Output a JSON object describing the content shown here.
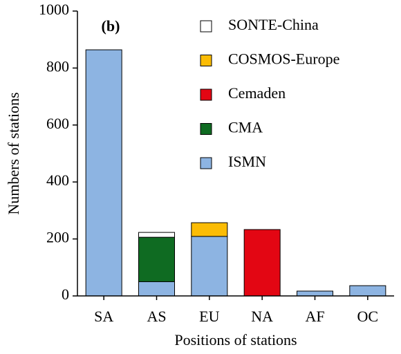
{
  "chart_data": {
    "type": "stacked_bar",
    "panel_label": "(b)",
    "x_label": "Positions of stations",
    "y_label": "Numbers of stations",
    "categories": [
      "SA",
      "AS",
      "EU",
      "NA",
      "AF",
      "OC"
    ],
    "series": [
      {
        "name": "ISMN",
        "color": "#8db4e2",
        "values": [
          864,
          50,
          209,
          0,
          17,
          36
        ]
      },
      {
        "name": "CMA",
        "color": "#0f6b22",
        "values": [
          0,
          156,
          0,
          0,
          0,
          0
        ]
      },
      {
        "name": "Cemaden",
        "color": "#e30613",
        "values": [
          0,
          0,
          0,
          233,
          0,
          0
        ]
      },
      {
        "name": "COSMOS-Europe",
        "color": "#fbbc05",
        "values": [
          0,
          0,
          48,
          0,
          0,
          0
        ]
      },
      {
        "name": "SONTE-China",
        "color": "#ffffff",
        "values": [
          0,
          17,
          0,
          0,
          0,
          0
        ]
      }
    ],
    "ylim": [
      0,
      1000
    ],
    "yticks": [
      0,
      200,
      400,
      600,
      800,
      1000
    ]
  }
}
